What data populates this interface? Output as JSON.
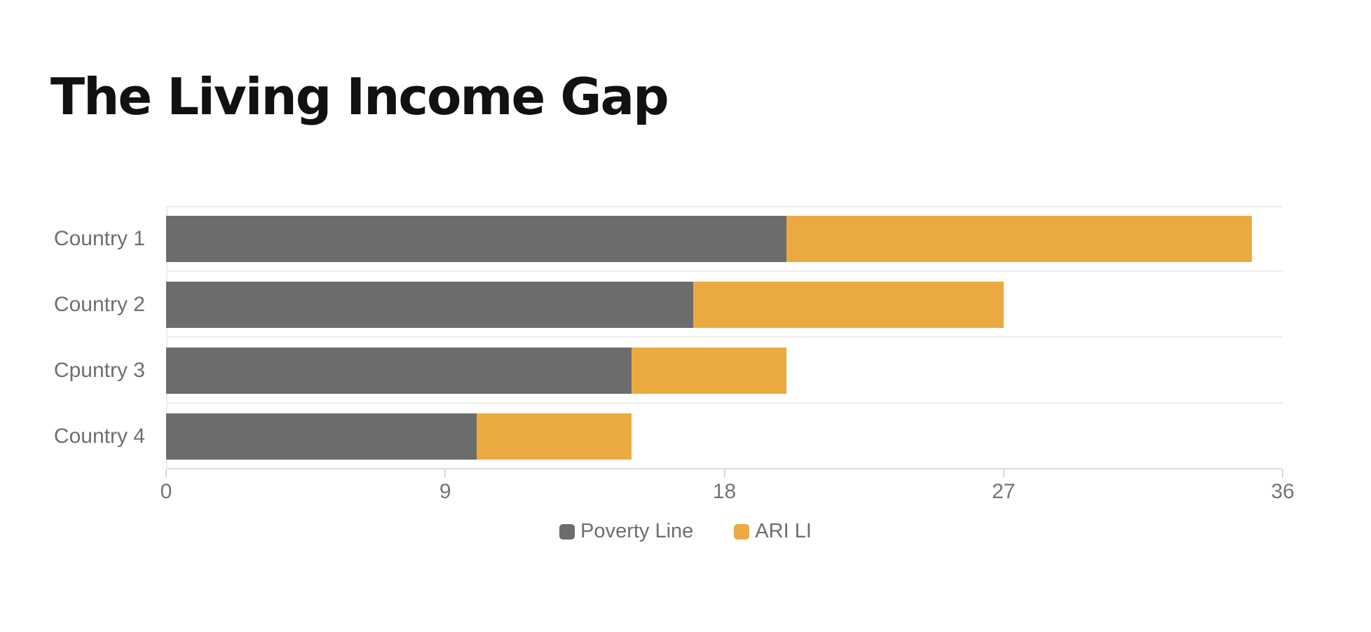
{
  "chart_data": {
    "type": "bar",
    "orientation": "horizontal",
    "stacked": true,
    "title": "The Living Income Gap",
    "categories": [
      "Country 1",
      "Country 2",
      "Cpuntry 3",
      "Country 4"
    ],
    "series": [
      {
        "name": "Poverty Line",
        "color": "#6c6c6c",
        "values": [
          20,
          17,
          15,
          10
        ]
      },
      {
        "name": "ARI LI",
        "color": "#ebaa41",
        "values": [
          15,
          10,
          5,
          5
        ]
      }
    ],
    "stack_totals": [
      35,
      27,
      20,
      15
    ],
    "xlabel": "",
    "ylabel": "",
    "xlim": [
      0,
      36
    ],
    "x_ticks": [
      0,
      9,
      18,
      27,
      36
    ],
    "grid": "horizontal band separators on, no vertical gridlines",
    "legend_position": "bottom-center"
  },
  "colors": {
    "background": "#ffffff",
    "title_text": "#111111",
    "axis_text": "#747474",
    "category_text": "#6c6f72",
    "legend_text": "#6e6e6e",
    "gridline": "#ececec",
    "axis_line": "#dcdcdc",
    "series_poverty_line": "#6c6c6c",
    "series_ari_li": "#ebaa41"
  }
}
